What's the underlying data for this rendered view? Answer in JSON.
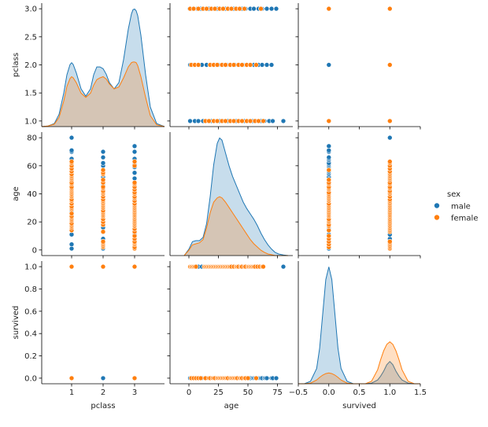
{
  "chart_data": {
    "type": "scatter",
    "variables": [
      "pclass",
      "age",
      "survived"
    ],
    "hue": "sex",
    "legend": {
      "title": "sex",
      "placement": "center-right",
      "entries": [
        {
          "name": "male",
          "color": "#1f77b4"
        },
        {
          "name": "female",
          "color": "#ff7f0e"
        }
      ]
    },
    "axes": {
      "pclass": {
        "range": [
          0.05,
          3.95
        ],
        "ticks": [
          1,
          2,
          3
        ],
        "tick_labels": [
          "1",
          "2",
          "3"
        ]
      },
      "age": {
        "range": [
          -16,
          88
        ],
        "ticks": [
          0,
          25,
          50,
          75
        ],
        "tick_labels": [
          "0",
          "25",
          "50",
          "75"
        ]
      },
      "survived": {
        "range": [
          -0.5,
          1.5
        ],
        "ticks": [
          -0.5,
          0.0,
          0.5,
          1.0,
          1.5
        ],
        "tick_labels": [
          "−0.5",
          "0.0",
          "0.5",
          "1.0",
          "1.5"
        ]
      }
    },
    "y_axes": {
      "pclass": {
        "range": [
          0.9,
          3.1
        ],
        "ticks": [
          1.0,
          1.5,
          2.0,
          2.5,
          3.0
        ],
        "tick_labels": [
          "1.0",
          "1.5",
          "2.0",
          "2.5",
          "3.0"
        ]
      },
      "age": {
        "range": [
          -4,
          84
        ],
        "ticks": [
          0,
          20,
          40,
          60,
          80
        ],
        "tick_labels": [
          "0",
          "20",
          "40",
          "60",
          "80"
        ]
      },
      "survived": {
        "range": [
          -0.05,
          1.05
        ],
        "ticks": [
          0.0,
          0.2,
          0.4,
          0.6,
          0.8,
          1.0
        ],
        "tick_labels": [
          "0.0",
          "0.2",
          "0.4",
          "0.6",
          "0.8",
          "1.0"
        ]
      }
    },
    "groups": {
      "male": {
        "pclass1_ages": [
          1,
          4,
          11,
          17,
          19,
          21,
          23,
          25,
          27,
          29,
          31,
          33,
          35,
          37,
          40,
          42,
          45,
          47,
          49,
          52,
          54,
          56,
          58,
          60,
          62,
          64,
          65,
          70,
          71,
          80
        ],
        "pclass2_ages": [
          1,
          3,
          8,
          16,
          18,
          20,
          22,
          24,
          26,
          28,
          30,
          32,
          34,
          36,
          38,
          40,
          42,
          44,
          46,
          48,
          50,
          52,
          54,
          57,
          60,
          62,
          66,
          70
        ],
        "pclass3_ages": [
          1,
          2,
          4,
          7,
          11,
          14,
          16,
          18,
          20,
          22,
          24,
          26,
          28,
          30,
          32,
          34,
          36,
          38,
          40,
          42,
          44,
          46,
          48,
          51,
          55,
          59,
          61,
          65,
          70,
          74
        ],
        "survived0_ages": [
          1,
          2,
          4,
          7,
          11,
          14,
          16,
          18,
          19,
          20,
          21,
          22,
          23,
          24,
          25,
          26,
          27,
          28,
          29,
          30,
          31,
          32,
          33,
          34,
          35,
          36,
          37,
          38,
          39,
          40,
          41,
          42,
          43,
          44,
          45,
          46,
          47,
          48,
          49,
          50,
          51,
          52,
          54,
          55,
          56,
          57,
          59,
          60,
          61,
          62,
          64,
          65,
          66,
          70,
          71,
          74
        ],
        "survived1_ages": [
          1,
          3,
          4,
          8,
          11,
          17,
          19,
          23,
          25,
          27,
          29,
          31,
          32,
          35,
          36,
          40,
          42,
          45,
          48,
          49,
          51,
          52,
          56,
          60,
          80
        ]
      },
      "female": {
        "pclass1_ages": [
          14,
          16,
          17,
          18,
          19,
          21,
          22,
          23,
          24,
          26,
          29,
          30,
          31,
          33,
          35,
          36,
          38,
          39,
          40,
          41,
          42,
          43,
          44,
          45,
          47,
          48,
          50,
          51,
          52,
          53,
          54,
          56,
          58,
          60,
          62,
          63
        ],
        "pclass2_ages": [
          2,
          3,
          4,
          5,
          6,
          13,
          18,
          20,
          22,
          24,
          25,
          26,
          27,
          28,
          30,
          31,
          32,
          33,
          34,
          35,
          36,
          38,
          40,
          41,
          42,
          44,
          45,
          48,
          50,
          54,
          55,
          57
        ],
        "pclass3_ages": [
          1,
          2,
          4,
          5,
          6,
          8,
          10,
          13,
          15,
          17,
          18,
          19,
          20,
          21,
          22,
          23,
          24,
          25,
          26,
          27,
          28,
          29,
          30,
          31,
          32,
          33,
          35,
          37,
          38,
          40,
          41,
          43,
          45,
          47,
          48,
          60,
          63
        ],
        "survived0_ages": [
          2,
          4,
          6,
          8,
          10,
          14,
          17,
          18,
          20,
          21,
          22,
          24,
          25,
          26,
          27,
          28,
          29,
          30,
          31,
          32,
          33,
          35,
          36,
          37,
          38,
          39,
          40,
          41,
          43,
          44,
          45,
          47,
          48,
          50,
          57
        ],
        "survived1_ages": [
          1,
          2,
          3,
          4,
          5,
          6,
          13,
          14,
          15,
          16,
          17,
          18,
          19,
          20,
          21,
          22,
          23,
          24,
          25,
          26,
          27,
          28,
          29,
          30,
          31,
          32,
          33,
          34,
          35,
          36,
          38,
          40,
          41,
          42,
          44,
          45,
          47,
          48,
          50,
          51,
          52,
          53,
          54,
          55,
          56,
          58,
          60,
          62,
          63
        ],
        "pclass_survived": [
          [
            1,
            0
          ],
          [
            1,
            1
          ],
          [
            2,
            1
          ],
          [
            3,
            1
          ],
          [
            3,
            0
          ]
        ]
      },
      "male_pclass_survived": [
        [
          1,
          0
        ],
        [
          1,
          1
        ],
        [
          2,
          0
        ],
        [
          2,
          1
        ],
        [
          3,
          0
        ],
        [
          3,
          1
        ]
      ]
    },
    "pclass_age_x_samples": {
      "male": {
        "1": [
          1,
          5,
          8,
          12,
          15,
          19,
          22,
          26,
          29,
          33,
          36,
          40,
          43,
          47,
          50,
          54,
          57,
          61,
          64,
          68,
          71,
          80
        ],
        "2": [
          1,
          4,
          8,
          11,
          15,
          18,
          22,
          25,
          29,
          32,
          35,
          39,
          42,
          46,
          49,
          52,
          55,
          59,
          62,
          66,
          70
        ],
        "3": [
          0.5,
          3,
          7,
          10,
          14,
          17,
          21,
          24,
          28,
          31,
          34,
          38,
          41,
          45,
          48,
          52,
          55,
          59,
          62,
          66,
          70,
          74
        ]
      },
      "female": {
        "1": [
          14,
          17,
          21,
          24,
          28,
          31,
          35,
          38,
          42,
          45,
          49,
          52,
          56,
          59,
          63
        ],
        "2": [
          2,
          5,
          8,
          18,
          21,
          24,
          28,
          31,
          35,
          38,
          42,
          45,
          49,
          52,
          57
        ],
        "3": [
          1,
          4,
          8,
          12,
          15,
          19,
          22,
          26,
          29,
          33,
          36,
          40,
          43,
          47,
          61
        ]
      }
    },
    "kde": {
      "pclass": {
        "x": [
          0.05,
          0.25,
          0.45,
          0.6,
          0.75,
          0.85,
          0.95,
          1.0,
          1.05,
          1.15,
          1.3,
          1.45,
          1.6,
          1.7,
          1.8,
          1.9,
          2.0,
          2.1,
          2.2,
          2.35,
          2.5,
          2.65,
          2.8,
          2.9,
          2.95,
          3.0,
          3.05,
          3.1,
          3.2,
          3.35,
          3.5,
          3.7,
          3.95
        ],
        "male": [
          0.0,
          0.01,
          0.05,
          0.2,
          0.55,
          0.85,
          1.02,
          1.05,
          1.02,
          0.88,
          0.62,
          0.5,
          0.62,
          0.85,
          0.98,
          0.98,
          0.95,
          0.86,
          0.72,
          0.62,
          0.72,
          1.1,
          1.6,
          1.85,
          1.92,
          1.93,
          1.9,
          1.82,
          1.5,
          0.85,
          0.32,
          0.05,
          0.0
        ],
        "female": [
          0.0,
          0.01,
          0.04,
          0.15,
          0.42,
          0.66,
          0.79,
          0.82,
          0.8,
          0.72,
          0.55,
          0.48,
          0.55,
          0.68,
          0.77,
          0.8,
          0.82,
          0.78,
          0.7,
          0.62,
          0.65,
          0.8,
          0.98,
          1.05,
          1.06,
          1.06,
          1.05,
          1.0,
          0.82,
          0.48,
          0.18,
          0.03,
          0.0
        ]
      },
      "age": {
        "x": [
          -4,
          0,
          3,
          6,
          9,
          12,
          15,
          18,
          21,
          24,
          26,
          28,
          31,
          34,
          37,
          40,
          43,
          46,
          49,
          52,
          55,
          58,
          61,
          64,
          67,
          70,
          73,
          76,
          80,
          84
        ],
        "male": [
          0.0,
          0.06,
          0.13,
          0.14,
          0.14,
          0.17,
          0.3,
          0.55,
          0.85,
          1.05,
          1.1,
          1.08,
          0.96,
          0.84,
          0.74,
          0.66,
          0.58,
          0.5,
          0.44,
          0.39,
          0.34,
          0.28,
          0.21,
          0.15,
          0.1,
          0.06,
          0.03,
          0.015,
          0.005,
          0.0
        ],
        "female": [
          0.0,
          0.05,
          0.1,
          0.11,
          0.12,
          0.15,
          0.26,
          0.4,
          0.5,
          0.54,
          0.55,
          0.54,
          0.5,
          0.45,
          0.4,
          0.35,
          0.3,
          0.25,
          0.2,
          0.15,
          0.11,
          0.08,
          0.05,
          0.03,
          0.015,
          0.008,
          0.0,
          0.0,
          0.0,
          0.0
        ]
      },
      "survived": {
        "x": [
          -0.5,
          -0.4,
          -0.3,
          -0.2,
          -0.15,
          -0.1,
          -0.05,
          0.0,
          0.05,
          0.1,
          0.15,
          0.2,
          0.3,
          0.4,
          0.5,
          0.6,
          0.7,
          0.8,
          0.85,
          0.9,
          0.95,
          1.0,
          1.05,
          1.1,
          1.15,
          1.2,
          1.3,
          1.4,
          1.5
        ],
        "male": [
          0.0,
          0.0,
          0.02,
          0.12,
          0.28,
          0.55,
          0.82,
          0.92,
          0.82,
          0.55,
          0.28,
          0.12,
          0.02,
          0.0,
          0.0,
          0.0,
          0.005,
          0.03,
          0.06,
          0.1,
          0.15,
          0.175,
          0.15,
          0.1,
          0.06,
          0.03,
          0.005,
          0.0,
          0.0
        ],
        "female": [
          0.0,
          0.0,
          0.005,
          0.03,
          0.05,
          0.068,
          0.08,
          0.085,
          0.08,
          0.068,
          0.05,
          0.03,
          0.005,
          0.0,
          0.0,
          0.0,
          0.02,
          0.11,
          0.19,
          0.26,
          0.31,
          0.33,
          0.31,
          0.26,
          0.19,
          0.11,
          0.02,
          0.0,
          0.0
        ]
      }
    }
  }
}
